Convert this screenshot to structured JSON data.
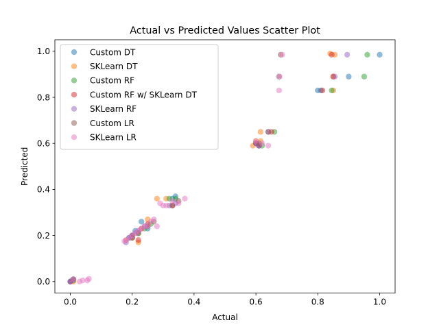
{
  "chart_data": {
    "type": "scatter",
    "title": "Actual vs Predicted Values Scatter Plot",
    "xlabel": "Actual",
    "ylabel": "Predicted",
    "xlim": [
      -0.05,
      1.05
    ],
    "ylim": [
      -0.05,
      1.05
    ],
    "xticks": [
      "0.0",
      "0.2",
      "0.4",
      "0.6",
      "0.8",
      "1.0"
    ],
    "yticks": [
      "0.0",
      "0.2",
      "0.4",
      "0.6",
      "0.8",
      "1.0"
    ],
    "grid": false,
    "legend_position": "upper-left",
    "series": [
      {
        "name": "Custom DT",
        "color": "#1f77b4",
        "points": [
          [
            0.0,
            0.0
          ],
          [
            0.01,
            0.01
          ],
          [
            0.19,
            0.19
          ],
          [
            0.2,
            0.2
          ],
          [
            0.21,
            0.22
          ],
          [
            0.23,
            0.26
          ],
          [
            0.25,
            0.23
          ],
          [
            0.33,
            0.36
          ],
          [
            0.34,
            0.37
          ],
          [
            0.6,
            0.6
          ],
          [
            0.61,
            0.59
          ],
          [
            0.8,
            0.83
          ],
          [
            0.81,
            0.83
          ],
          [
            0.9,
            0.89
          ],
          [
            1.0,
            0.985
          ]
        ]
      },
      {
        "name": "SKLearn DT",
        "color": "#ff7f0e",
        "points": [
          [
            0.01,
            0.0
          ],
          [
            0.18,
            0.18
          ],
          [
            0.22,
            0.17
          ],
          [
            0.25,
            0.27
          ],
          [
            0.28,
            0.36
          ],
          [
            0.31,
            0.36
          ],
          [
            0.59,
            0.59
          ],
          [
            0.6,
            0.61
          ],
          [
            0.615,
            0.65
          ],
          [
            0.615,
            0.61
          ],
          [
            0.84,
            0.99
          ],
          [
            0.855,
            0.985
          ],
          [
            0.85,
            0.89
          ],
          [
            0.85,
            0.83
          ]
        ]
      },
      {
        "name": "Custom RF",
        "color": "#2ca02c",
        "points": [
          [
            0.01,
            0.005
          ],
          [
            0.2,
            0.19
          ],
          [
            0.22,
            0.21
          ],
          [
            0.24,
            0.23
          ],
          [
            0.26,
            0.25
          ],
          [
            0.32,
            0.36
          ],
          [
            0.34,
            0.36
          ],
          [
            0.62,
            0.59
          ],
          [
            0.66,
            0.65
          ],
          [
            0.845,
            0.83
          ],
          [
            0.95,
            0.89
          ],
          [
            0.96,
            0.985
          ]
        ]
      },
      {
        "name": "Custom RF w/ SKLearn DT",
        "color": "#d62728",
        "points": [
          [
            0.0,
            0.0
          ],
          [
            0.2,
            0.19
          ],
          [
            0.22,
            0.18
          ],
          [
            0.23,
            0.23
          ],
          [
            0.25,
            0.25
          ],
          [
            0.33,
            0.33
          ],
          [
            0.6,
            0.6
          ],
          [
            0.61,
            0.59
          ],
          [
            0.65,
            0.65
          ],
          [
            0.815,
            0.83
          ],
          [
            0.845,
            0.985
          ],
          [
            0.85,
            0.89
          ]
        ]
      },
      {
        "name": "SKLearn RF",
        "color": "#9467bd",
        "points": [
          [
            0.0,
            0.0
          ],
          [
            0.005,
            0.005
          ],
          [
            0.18,
            0.17
          ],
          [
            0.19,
            0.19
          ],
          [
            0.2,
            0.2
          ],
          [
            0.21,
            0.21
          ],
          [
            0.22,
            0.22
          ],
          [
            0.24,
            0.24
          ],
          [
            0.32,
            0.33
          ],
          [
            0.34,
            0.34
          ],
          [
            0.6,
            0.6
          ],
          [
            0.61,
            0.59
          ],
          [
            0.64,
            0.65
          ],
          [
            0.855,
            0.89
          ],
          [
            0.895,
            0.985
          ]
        ]
      },
      {
        "name": "Custom LR",
        "color": "#8c564b",
        "points": [
          [
            0.01,
            0.01
          ],
          [
            0.2,
            0.2
          ],
          [
            0.22,
            0.21
          ],
          [
            0.25,
            0.24
          ],
          [
            0.27,
            0.26
          ],
          [
            0.33,
            0.33
          ],
          [
            0.35,
            0.35
          ],
          [
            0.61,
            0.6
          ],
          [
            0.64,
            0.65
          ],
          [
            0.68,
            0.985
          ],
          [
            0.675,
            0.89
          ]
        ]
      },
      {
        "name": "SKLearn LR",
        "color": "#e377c2",
        "points": [
          [
            0.03,
            0.0
          ],
          [
            0.04,
            0.005
          ],
          [
            0.055,
            0.005
          ],
          [
            0.06,
            0.012
          ],
          [
            0.01,
            0.01
          ],
          [
            0.175,
            0.175
          ],
          [
            0.18,
            0.18
          ],
          [
            0.19,
            0.19
          ],
          [
            0.2,
            0.2
          ],
          [
            0.21,
            0.21
          ],
          [
            0.22,
            0.22
          ],
          [
            0.23,
            0.23
          ],
          [
            0.24,
            0.24
          ],
          [
            0.25,
            0.24
          ],
          [
            0.26,
            0.26
          ],
          [
            0.27,
            0.27
          ],
          [
            0.28,
            0.24
          ],
          [
            0.29,
            0.34
          ],
          [
            0.3,
            0.33
          ],
          [
            0.31,
            0.33
          ],
          [
            0.33,
            0.35
          ],
          [
            0.35,
            0.34
          ],
          [
            0.37,
            0.36
          ],
          [
            0.6,
            0.61
          ],
          [
            0.62,
            0.6
          ],
          [
            0.64,
            0.59
          ],
          [
            0.675,
            0.83
          ],
          [
            0.676,
            0.89
          ],
          [
            0.685,
            0.985
          ]
        ]
      }
    ]
  }
}
